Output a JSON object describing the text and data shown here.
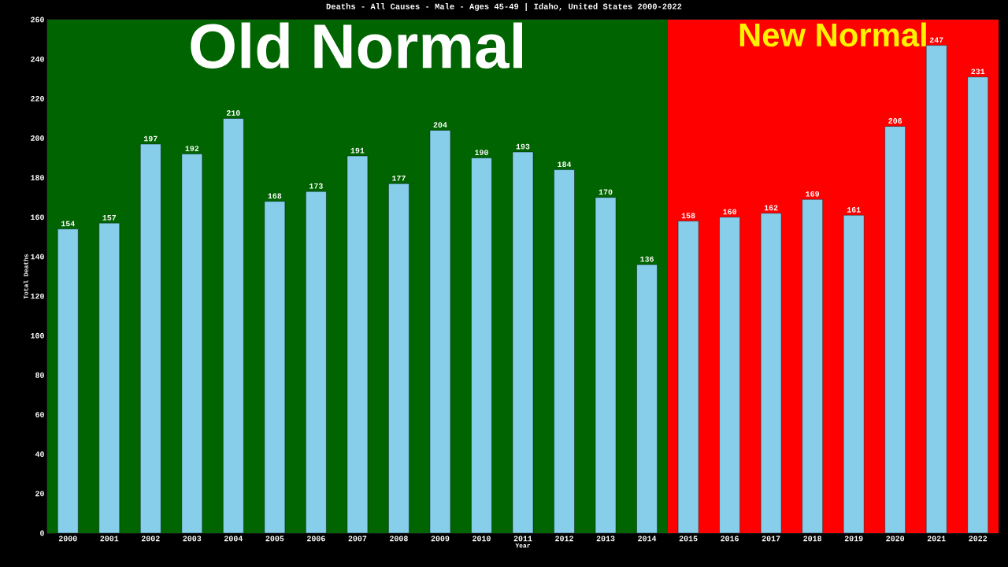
{
  "chart_data": {
    "type": "bar",
    "title": "Deaths - All Causes - Male - Ages 45-49 | Idaho, United States 2000-2022",
    "xlabel": "Year",
    "ylabel": "Total Deaths",
    "categories": [
      "2000",
      "2001",
      "2002",
      "2003",
      "2004",
      "2005",
      "2006",
      "2007",
      "2008",
      "2009",
      "2010",
      "2011",
      "2012",
      "2013",
      "2014",
      "2015",
      "2016",
      "2017",
      "2018",
      "2019",
      "2020",
      "2021",
      "2022"
    ],
    "values": [
      154,
      157,
      197,
      192,
      210,
      168,
      173,
      191,
      177,
      204,
      190,
      193,
      184,
      170,
      136,
      158,
      160,
      162,
      169,
      161,
      206,
      247,
      231
    ],
    "color": "#87ceeb",
    "ylim": [
      0,
      260
    ],
    "yticks": [
      0,
      20,
      40,
      60,
      80,
      100,
      120,
      140,
      160,
      180,
      200,
      220,
      240,
      260
    ],
    "bands": [
      {
        "axis": "x",
        "from": "2000",
        "to": "2014",
        "label": "Old Normal",
        "color": "#006400"
      },
      {
        "axis": "x",
        "from": "2015",
        "to": "2022",
        "label": "New Normal",
        "color": "#ff0000"
      }
    ],
    "data_labels": true,
    "grid": false
  }
}
